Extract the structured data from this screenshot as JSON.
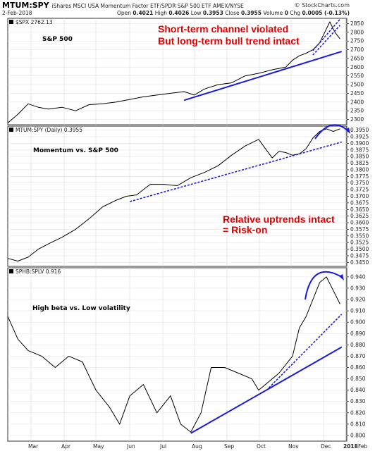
{
  "header": {
    "symbol": "MTUM:SPY",
    "description": "iShares MSCI USA Momentum Factor ETF/SPDR S&P 500 ETF  AMEX/NYSE",
    "logo": "© StockCharts.com",
    "date": "2-Feb-2018",
    "open_label": "Open",
    "open": "0.4021",
    "high_label": "High",
    "high": "0.4026",
    "low_label": "Low",
    "low": "0.3953",
    "close_label": "Close",
    "close": "0.3955",
    "volume_label": "Volume",
    "volume": "0",
    "chg_label": "Chg",
    "chg": "0.0005 (-0.13%)"
  },
  "x_labels": [
    "Mar",
    "Apr",
    "May",
    "Jun",
    "Jul",
    "Aug",
    "Sep",
    "Oct",
    "Nov",
    "Dec",
    "2018",
    "Feb"
  ],
  "chart_data": [
    {
      "type": "line",
      "legend": "$SPX 2762.13",
      "panel_label": "S&P 500",
      "annotations": [
        "Short-term channel violated",
        "But long-term bull trend intact"
      ],
      "y_ticks": [
        2300,
        2350,
        2400,
        2450,
        2500,
        2550,
        2600,
        2650,
        2700,
        2750,
        2800,
        2850
      ],
      "ylim": [
        2270,
        2880
      ],
      "x": [
        0,
        0.03,
        0.06,
        0.09,
        0.12,
        0.16,
        0.2,
        0.24,
        0.28,
        0.32,
        0.36,
        0.4,
        0.44,
        0.48,
        0.52,
        0.55,
        0.58,
        0.62,
        0.66,
        0.7,
        0.74,
        0.78,
        0.82,
        0.84,
        0.86,
        0.88,
        0.9,
        0.92,
        0.935,
        0.95,
        0.965,
        0.98
      ],
      "y": [
        2280,
        2330,
        2390,
        2370,
        2360,
        2370,
        2350,
        2385,
        2390,
        2400,
        2415,
        2430,
        2440,
        2450,
        2460,
        2440,
        2475,
        2500,
        2510,
        2550,
        2565,
        2585,
        2600,
        2640,
        2665,
        2680,
        2700,
        2740,
        2800,
        2860,
        2800,
        2762
      ],
      "trendlines": [
        {
          "x": [
            0.52,
            0.985
          ],
          "y": [
            2410,
            2690
          ]
        },
        {
          "x": [
            0.9,
            0.98
          ],
          "y": [
            2670,
            2840
          ]
        },
        {
          "x": [
            0.9,
            0.98
          ],
          "y": [
            2695,
            2875
          ]
        }
      ]
    },
    {
      "type": "line",
      "legend": "MTUM:SPY (Daily) 0.3955",
      "panel_label": "Momentum vs. S&P 500",
      "annotations": [
        "Relative uptrends intact",
        "= Risk-on"
      ],
      "y_ticks": [
        0.345,
        0.3475,
        0.35,
        0.3525,
        0.355,
        0.3575,
        0.36,
        0.3625,
        0.365,
        0.3675,
        0.37,
        0.3725,
        0.375,
        0.3775,
        0.38,
        0.3825,
        0.385,
        0.3875,
        0.39,
        0.3925,
        0.395
      ],
      "y_tick_labels": [
        "0.3450",
        "0.3475",
        "0.3500",
        "0.3525",
        "0.3550",
        "0.3575",
        "0.3600",
        "0.3625",
        "0.3650",
        "0.3675",
        "0.3700",
        "0.3725",
        "0.3750",
        "0.3775",
        "0.3800",
        "0.3825",
        "0.3850",
        "0.3875",
        "0.3900",
        "0.3925",
        "0.3950"
      ],
      "ylim": [
        0.3435,
        0.3965
      ],
      "x": [
        0,
        0.03,
        0.06,
        0.09,
        0.12,
        0.16,
        0.2,
        0.24,
        0.28,
        0.32,
        0.35,
        0.38,
        0.42,
        0.46,
        0.5,
        0.54,
        0.58,
        0.62,
        0.66,
        0.7,
        0.74,
        0.78,
        0.8,
        0.82,
        0.84,
        0.86,
        0.88,
        0.9,
        0.92,
        0.94,
        0.96,
        0.98
      ],
      "y": [
        0.3465,
        0.3455,
        0.347,
        0.35,
        0.352,
        0.3545,
        0.3575,
        0.3615,
        0.366,
        0.3685,
        0.37,
        0.3705,
        0.3745,
        0.3745,
        0.374,
        0.377,
        0.379,
        0.3815,
        0.3855,
        0.389,
        0.3915,
        0.3845,
        0.387,
        0.3865,
        0.3855,
        0.386,
        0.388,
        0.392,
        0.3945,
        0.3955,
        0.3945,
        0.3955
      ],
      "trendlines": [
        {
          "x": [
            0.36,
            0.985
          ],
          "y": [
            0.368,
            0.3905
          ]
        }
      ]
    },
    {
      "type": "line",
      "legend": "SPHB:SPLV 0.916",
      "panel_label": "High beta vs. Low volatility",
      "y_ticks": [
        0.8,
        0.81,
        0.82,
        0.83,
        0.84,
        0.85,
        0.86,
        0.87,
        0.88,
        0.89,
        0.9,
        0.91,
        0.92,
        0.93,
        0.94
      ],
      "y_tick_labels": [
        "0.800",
        "0.810",
        "0.820",
        "0.830",
        "0.840",
        "0.850",
        "0.860",
        "0.870",
        "0.880",
        "0.890",
        "0.900",
        "0.910",
        "0.920",
        "0.930",
        "0.940"
      ],
      "ylim": [
        0.795,
        0.948
      ],
      "x": [
        0,
        0.03,
        0.06,
        0.1,
        0.14,
        0.18,
        0.22,
        0.26,
        0.3,
        0.33,
        0.36,
        0.4,
        0.44,
        0.48,
        0.51,
        0.54,
        0.57,
        0.6,
        0.64,
        0.68,
        0.72,
        0.74,
        0.76,
        0.8,
        0.84,
        0.86,
        0.88,
        0.9,
        0.92,
        0.94,
        0.96,
        0.98
      ],
      "y": [
        0.905,
        0.885,
        0.875,
        0.87,
        0.86,
        0.87,
        0.865,
        0.84,
        0.825,
        0.81,
        0.835,
        0.845,
        0.82,
        0.835,
        0.81,
        0.803,
        0.82,
        0.86,
        0.86,
        0.855,
        0.85,
        0.84,
        0.845,
        0.855,
        0.87,
        0.895,
        0.905,
        0.92,
        0.935,
        0.94,
        0.928,
        0.916
      ],
      "trendlines": [
        {
          "x": [
            0.54,
            0.985
          ],
          "y": [
            0.802,
            0.878
          ]
        },
        {
          "x": [
            0.77,
            0.985
          ],
          "y": [
            0.842,
            0.907
          ]
        }
      ]
    }
  ]
}
